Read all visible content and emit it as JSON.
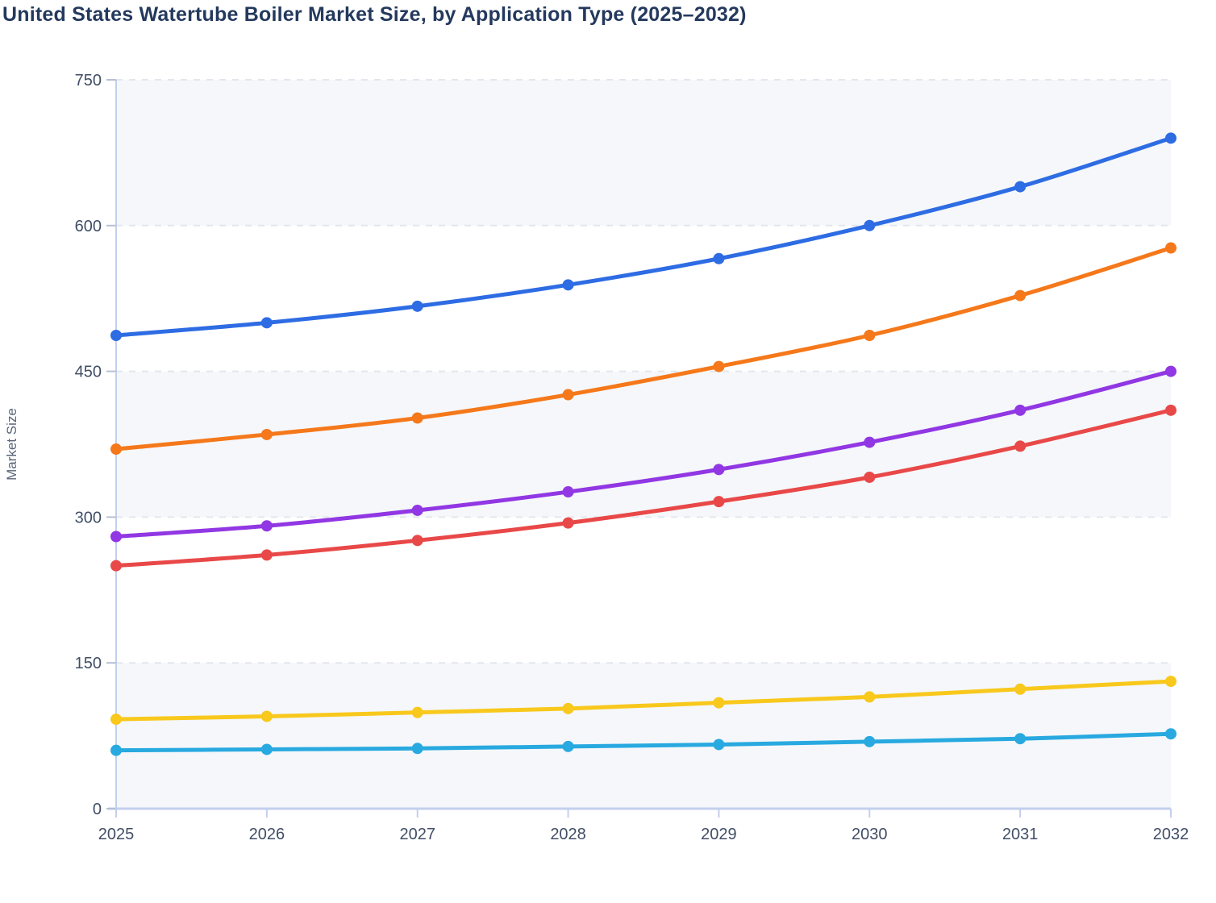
{
  "title": "United States Watertube Boiler Market Size, by Application Type (2025–2032)",
  "axes": {
    "y_label": "Market Size",
    "y_ticks": [
      0,
      150,
      300,
      450,
      600,
      750
    ],
    "x_ticks": [
      "2025",
      "2026",
      "2027",
      "2028",
      "2029",
      "2030",
      "2031",
      "2032"
    ]
  },
  "chart_data": {
    "type": "line",
    "title": "United States Watertube Boiler Market Size, by Application Type (2025–2032)",
    "x": [
      "2025",
      "2026",
      "2027",
      "2028",
      "2029",
      "2030",
      "2031",
      "2032"
    ],
    "series": [
      {
        "id": "series-blue",
        "color": "#2e6ce4",
        "values": [
          487,
          500,
          517,
          539,
          566,
          600,
          640,
          690
        ]
      },
      {
        "id": "series-orange",
        "color": "#f5781a",
        "values": [
          370,
          385,
          402,
          426,
          455,
          487,
          528,
          577
        ]
      },
      {
        "id": "series-purple",
        "color": "#9137e3",
        "values": [
          280,
          291,
          307,
          326,
          349,
          377,
          410,
          450
        ]
      },
      {
        "id": "series-red",
        "color": "#e94848",
        "values": [
          250,
          261,
          276,
          294,
          316,
          341,
          373,
          410
        ]
      },
      {
        "id": "series-yellow",
        "color": "#f8c81c",
        "values": [
          92,
          95,
          99,
          103,
          109,
          115,
          123,
          131
        ]
      },
      {
        "id": "series-cyan",
        "color": "#28a9e0",
        "values": [
          60,
          61,
          62,
          64,
          66,
          69,
          72,
          77
        ]
      }
    ],
    "xlabel": "",
    "ylabel": "Market Size",
    "ylim": [
      0,
      750
    ],
    "y_tick_step": 150,
    "grid": "horizontal-dashed",
    "legend": "none",
    "point_markers": true,
    "curve": "smooth"
  },
  "style": {
    "background": "#ffffff",
    "title_color": "#24395d",
    "tick_label_color": "#414e66",
    "axis_label_color": "#5a6577",
    "band_fill": "#f5f7fa",
    "gridline_color": "#e3e7ed",
    "axis_line_color": "#c3cfec",
    "tick_mark_color": "#b6c0d4"
  }
}
